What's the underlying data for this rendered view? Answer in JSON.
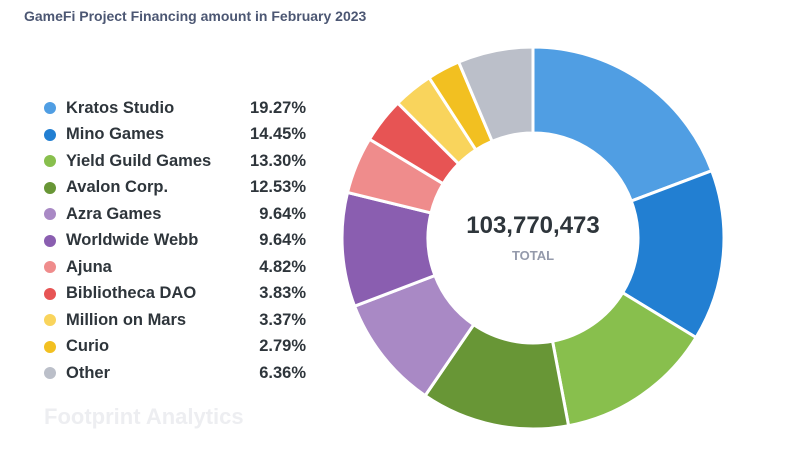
{
  "chart_data": {
    "type": "pie",
    "variant": "donut",
    "title": "GameFi Project Financing amount in February 2023",
    "total": "103,770,473",
    "total_label": "TOTAL",
    "legend_position": "left",
    "watermark": "Footprint Analytics",
    "slices": [
      {
        "label": "Kratos Studio",
        "percent_text": "19.27%",
        "value": 19.27,
        "color": "#509EE3"
      },
      {
        "label": "Mino Games",
        "percent_text": "14.45%",
        "value": 14.45,
        "color": "#227FD2"
      },
      {
        "label": "Yield Guild Games",
        "percent_text": "13.30%",
        "value": 13.3,
        "color": "#88BF4D"
      },
      {
        "label": "Avalon Corp.",
        "percent_text": "12.53%",
        "value": 12.53,
        "color": "#689636"
      },
      {
        "label": "Azra Games",
        "percent_text": "9.64%",
        "value": 9.64,
        "color": "#A989C5"
      },
      {
        "label": "Worldwide Webb",
        "percent_text": "9.64%",
        "value": 9.64,
        "color": "#8A5EB0"
      },
      {
        "label": "Ajuna",
        "percent_text": "4.82%",
        "value": 4.82,
        "color": "#EF8C8C"
      },
      {
        "label": "Bibliotheca DAO",
        "percent_text": "3.83%",
        "value": 3.83,
        "color": "#E75454"
      },
      {
        "label": "Million on Mars",
        "percent_text": "3.37%",
        "value": 3.37,
        "color": "#F9D45C"
      },
      {
        "label": "Curio",
        "percent_text": "2.79%",
        "value": 2.79,
        "color": "#F2C021"
      },
      {
        "label": "Other",
        "percent_text": "6.36%",
        "value": 6.36,
        "color": "#BBBFC9"
      }
    ]
  }
}
